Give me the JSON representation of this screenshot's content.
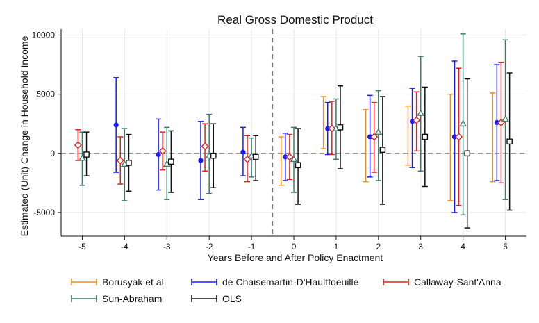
{
  "chart_data": {
    "type": "scatter",
    "title": "Real Gross Domestic Product",
    "xlabel": "Years Before and After Policy Enactment",
    "ylabel": "Estimated (Unit) Change in Household Income",
    "x_ticks": [
      -5,
      -4,
      -3,
      -2,
      -1,
      0,
      1,
      2,
      3,
      4,
      5
    ],
    "y_ticks": [
      -5000,
      0,
      5000,
      10000
    ],
    "ylim": [
      -7000,
      10500
    ],
    "xlim": [
      -5.5,
      5.5
    ],
    "reference_lines": {
      "horizontal_y": 0,
      "vertical_x": -0.5
    },
    "grid": true,
    "legend_position": "bottom",
    "series": [
      {
        "name": "Borusyak et al.",
        "color": "#f28e1c",
        "marker": "none",
        "offset": -0.3,
        "x": [
          0,
          1,
          2,
          3,
          4,
          5
        ],
        "y": [
          -100,
          2600,
          700,
          1500,
          500,
          1400
        ],
        "lo": [
          -2700,
          400,
          -2400,
          -1000,
          -4000,
          -2400
        ],
        "hi": [
          1400,
          4800,
          3700,
          4000,
          5000,
          5100
        ]
      },
      {
        "name": "de Chaisemartin-D'Haultfoeuille",
        "color": "#1a1aff",
        "marker": "circle",
        "offset": -0.2,
        "x": [
          -4,
          -3,
          -2,
          -1,
          0,
          1,
          2,
          3,
          4,
          5
        ],
        "y": [
          2400,
          -100,
          -600,
          100,
          -300,
          2100,
          1400,
          2700,
          1400,
          2600
        ],
        "lo": [
          -1600,
          -3100,
          -3900,
          -1900,
          -2300,
          -100,
          -2000,
          -1200,
          -5000,
          -2300
        ],
        "hi": [
          6400,
          2900,
          2700,
          2200,
          1700,
          4300,
          4900,
          5500,
          7800,
          7500
        ]
      },
      {
        "name": "Callaway-Sant'Anna",
        "color": "#e0211d",
        "marker": "diamond",
        "offset": -0.1,
        "x": [
          -5,
          -4,
          -3,
          -2,
          -1,
          0,
          1,
          2,
          3,
          4,
          5
        ],
        "y": [
          700,
          -600,
          200,
          600,
          -500,
          -300,
          2100,
          1400,
          2800,
          1400,
          2600
        ],
        "lo": [
          -600,
          -2600,
          -1400,
          -1500,
          -2400,
          -2200,
          -100,
          -1600,
          200,
          -4400,
          -2500
        ],
        "hi": [
          2000,
          1400,
          1800,
          2500,
          1500,
          1600,
          4400,
          4300,
          5200,
          7200,
          7700
        ]
      },
      {
        "name": "Sun-Abraham",
        "color": "#3d7a6a",
        "marker": "triangle",
        "offset": 0.0,
        "x": [
          -5,
          -4,
          -3,
          -2,
          -1,
          0,
          1,
          2,
          3,
          4,
          5
        ],
        "y": [
          -400,
          -900,
          -900,
          -200,
          -200,
          -500,
          2100,
          1800,
          3400,
          2500,
          2900
        ],
        "lo": [
          -2700,
          -4000,
          -3900,
          -3400,
          -2000,
          -3300,
          -500,
          -2300,
          -1500,
          -5200,
          -3900
        ],
        "hi": [
          1800,
          2100,
          2200,
          3300,
          1300,
          2200,
          4600,
          5300,
          8200,
          10100,
          9600
        ]
      },
      {
        "name": "OLS",
        "color": "#111111",
        "marker": "square",
        "offset": 0.1,
        "x": [
          -5,
          -4,
          -3,
          -2,
          -1,
          0,
          1,
          2,
          3,
          4,
          5
        ],
        "y": [
          -100,
          -800,
          -700,
          -200,
          -300,
          -1000,
          2200,
          300,
          1400,
          0,
          1000
        ],
        "lo": [
          -1900,
          -3200,
          -3300,
          -2900,
          -2300,
          -4300,
          -1300,
          -4300,
          -2800,
          -6300,
          -4800
        ],
        "hi": [
          1800,
          1600,
          1900,
          2500,
          1500,
          2100,
          5700,
          4800,
          5600,
          6300,
          6800
        ]
      }
    ]
  }
}
